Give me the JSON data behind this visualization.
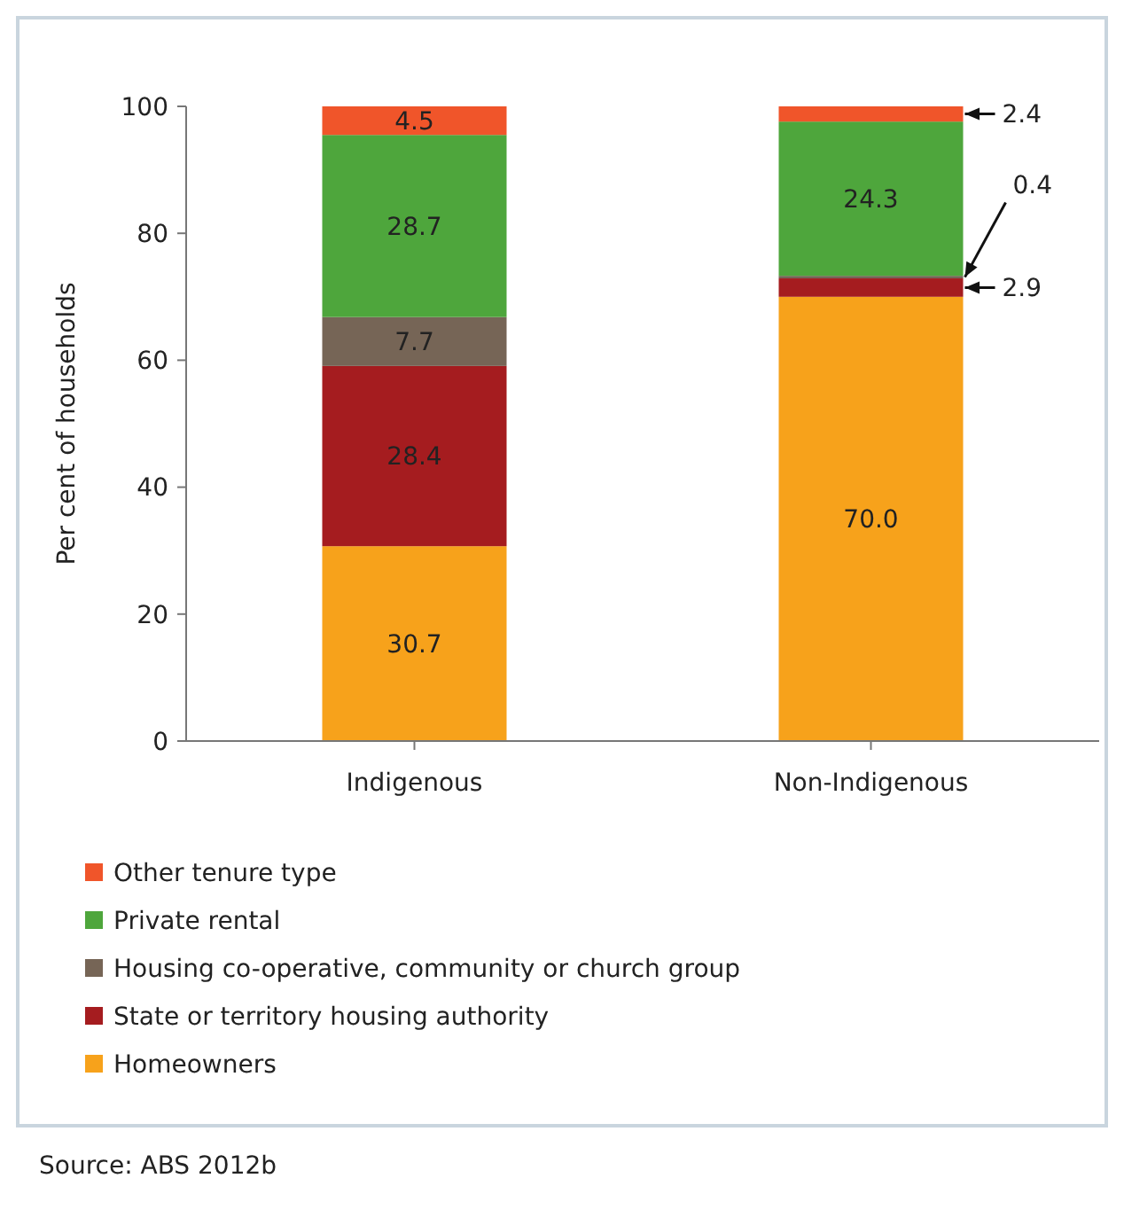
{
  "chart_data": {
    "type": "bar",
    "stacked": true,
    "ylabel": "Per cent of households",
    "categories": [
      "Indigenous",
      "Non-Indigenous"
    ],
    "series": [
      {
        "name": "Homeowners",
        "color": "#f7a21b",
        "values": [
          30.7,
          70.0
        ],
        "value_labels": [
          "30.7",
          "70.0"
        ]
      },
      {
        "name": "State or territory housing authority",
        "color": "#a51c1f",
        "values": [
          28.4,
          2.9
        ],
        "value_labels": [
          "28.4",
          "2.9"
        ]
      },
      {
        "name": "Housing co-operative, community or church group",
        "color": "#766556",
        "values": [
          7.7,
          0.4
        ],
        "value_labels": [
          "7.7",
          "0.4"
        ]
      },
      {
        "name": "Private rental",
        "color": "#4ea63c",
        "values": [
          28.7,
          24.3
        ],
        "value_labels": [
          "28.7",
          "24.3"
        ]
      },
      {
        "name": "Other tenure type",
        "color": "#f0552a",
        "values": [
          4.5,
          2.4
        ],
        "value_labels": [
          "4.5",
          "2.4"
        ]
      }
    ],
    "ylim": [
      0,
      100
    ],
    "yticks": [
      0,
      20,
      40,
      60,
      80,
      100
    ],
    "legend": "bottom",
    "grid": false,
    "annotations": [
      "Source: ABS 2012b"
    ]
  }
}
